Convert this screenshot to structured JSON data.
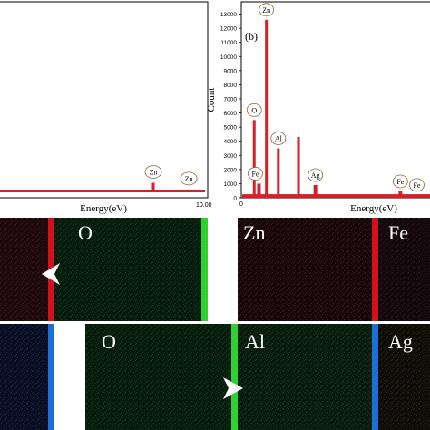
{
  "colors": {
    "spectrum": "#d61f26",
    "map_O": "#1f7a24",
    "map_Zn": "#b3202a",
    "map_Fe": "#a01c28",
    "map_Al": "#1e9a28",
    "map_Ag": "#a8a020",
    "map_blue": "#1b3c8f",
    "bar_red": "#d0121b",
    "bar_green": "#2fd12f",
    "bar_blue": "#1c6ed8"
  },
  "chart_data": [
    {
      "type": "line",
      "title": "",
      "xlabel": "Energy(eV)",
      "ylabel": "",
      "xlim": [
        0,
        10
      ],
      "x_tick_labels": [
        "10.00"
      ],
      "peaks": [
        {
          "label": "Zn",
          "x": 8.63,
          "y": 0.05
        },
        {
          "label": "Zn",
          "x": 9.57,
          "y": 0.015
        }
      ]
    },
    {
      "type": "line",
      "panel_label": "(b)",
      "title": "",
      "xlabel": "Energy(eV)",
      "ylabel": "Count",
      "xlim": [
        0,
        10
      ],
      "ylim": [
        0,
        14000
      ],
      "x_tick_labels": [
        "0"
      ],
      "y_ticks": [
        0,
        1000,
        2000,
        3000,
        4000,
        5000,
        6000,
        7000,
        8000,
        9000,
        10000,
        11000,
        12000,
        13000
      ],
      "peaks": [
        {
          "label": "O",
          "x": 0.52,
          "y": 5500
        },
        {
          "label": "Zn",
          "x": 1.01,
          "y": 12600
        },
        {
          "label": "Fe",
          "x": 0.71,
          "y": 1000
        },
        {
          "label": "Al",
          "x": 1.49,
          "y": 3500
        },
        {
          "label": "",
          "x": 2.3,
          "y": 4300
        },
        {
          "label": "Ag",
          "x": 2.98,
          "y": 900
        },
        {
          "label": "Fe",
          "x": 6.4,
          "y": 450
        },
        {
          "label": "Fe",
          "x": 7.06,
          "y": 200
        }
      ]
    }
  ],
  "maps": {
    "top_left": {
      "label": "O"
    },
    "top_right": [
      {
        "label": "Zn"
      },
      {
        "label": "Fe"
      }
    ],
    "bottom": [
      {
        "label": "O"
      },
      {
        "label": "Al"
      },
      {
        "label": "Ag"
      }
    ]
  }
}
